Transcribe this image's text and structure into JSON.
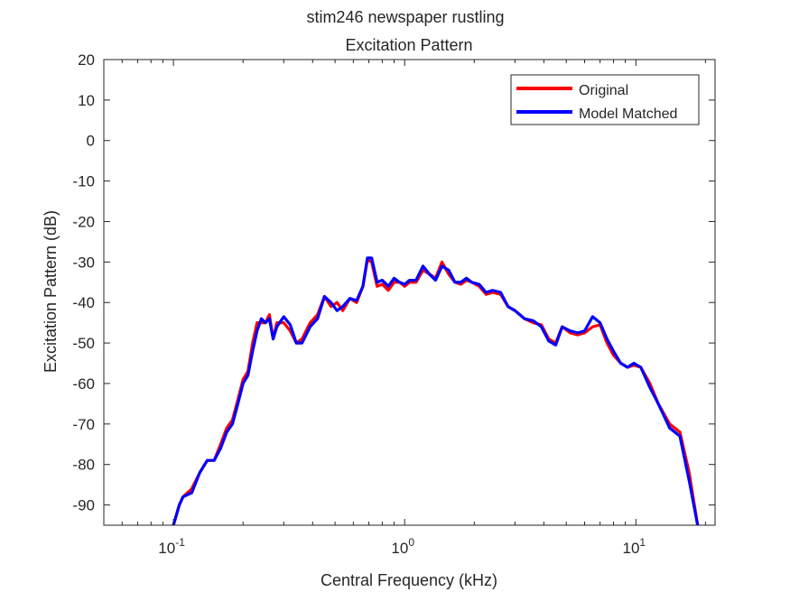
{
  "chart_data": {
    "type": "line",
    "title": "stim246 newspaper rustling",
    "subtitle": "Excitation Pattern",
    "xlabel": "Central Frequency (kHz)",
    "ylabel": "Excitation Pattern (dB)",
    "xscale": "log",
    "xlim": [
      0.05,
      22
    ],
    "ylim": [
      -95,
      20
    ],
    "yticks": [
      20,
      10,
      0,
      -10,
      -20,
      -30,
      -40,
      -50,
      -60,
      -70,
      -80,
      -90
    ],
    "xticks": [
      {
        "value": 0.1,
        "base": "10",
        "exp": "-1"
      },
      {
        "value": 1,
        "base": "10",
        "exp": "0"
      },
      {
        "value": 10,
        "base": "10",
        "exp": "1"
      }
    ],
    "grid": false,
    "legend_position": "top-right",
    "series": [
      {
        "name": "Original",
        "color": "#ff0000",
        "points": [
          [
            0.1,
            -95
          ],
          [
            0.106,
            -90
          ],
          [
            0.11,
            -88
          ],
          [
            0.12,
            -86
          ],
          [
            0.13,
            -82
          ],
          [
            0.14,
            -79
          ],
          [
            0.15,
            -79
          ],
          [
            0.16,
            -75
          ],
          [
            0.17,
            -71
          ],
          [
            0.18,
            -69
          ],
          [
            0.19,
            -64
          ],
          [
            0.2,
            -59
          ],
          [
            0.21,
            -57
          ],
          [
            0.22,
            -50
          ],
          [
            0.23,
            -45
          ],
          [
            0.24,
            -45
          ],
          [
            0.25,
            -45
          ],
          [
            0.26,
            -43
          ],
          [
            0.27,
            -49
          ],
          [
            0.28,
            -45
          ],
          [
            0.3,
            -45
          ],
          [
            0.32,
            -47
          ],
          [
            0.34,
            -50
          ],
          [
            0.36,
            -49
          ],
          [
            0.39,
            -45
          ],
          [
            0.42,
            -43
          ],
          [
            0.45,
            -38.5
          ],
          [
            0.48,
            -41
          ],
          [
            0.51,
            -40
          ],
          [
            0.54,
            -42
          ],
          [
            0.58,
            -39
          ],
          [
            0.62,
            -40
          ],
          [
            0.66,
            -36
          ],
          [
            0.69,
            -29.5
          ],
          [
            0.72,
            -30
          ],
          [
            0.76,
            -36
          ],
          [
            0.8,
            -35.5
          ],
          [
            0.85,
            -37
          ],
          [
            0.9,
            -35
          ],
          [
            0.95,
            -35
          ],
          [
            1.0,
            -36
          ],
          [
            1.05,
            -35
          ],
          [
            1.12,
            -35
          ],
          [
            1.2,
            -32
          ],
          [
            1.28,
            -33
          ],
          [
            1.36,
            -34
          ],
          [
            1.45,
            -30
          ],
          [
            1.55,
            -33
          ],
          [
            1.65,
            -35
          ],
          [
            1.75,
            -35.5
          ],
          [
            1.85,
            -34.5
          ],
          [
            1.95,
            -35
          ],
          [
            2.1,
            -36
          ],
          [
            2.25,
            -38
          ],
          [
            2.4,
            -37.5
          ],
          [
            2.6,
            -38
          ],
          [
            2.8,
            -41
          ],
          [
            3.0,
            -42
          ],
          [
            3.3,
            -44
          ],
          [
            3.6,
            -45
          ],
          [
            3.9,
            -45.5
          ],
          [
            4.2,
            -49
          ],
          [
            4.5,
            -50
          ],
          [
            4.8,
            -46
          ],
          [
            5.2,
            -47.5
          ],
          [
            5.6,
            -48
          ],
          [
            6.0,
            -47.5
          ],
          [
            6.5,
            -46
          ],
          [
            7.0,
            -45.5
          ],
          [
            7.5,
            -50
          ],
          [
            8.0,
            -53
          ],
          [
            8.6,
            -55
          ],
          [
            9.2,
            -56
          ],
          [
            9.8,
            -55.5
          ],
          [
            10.5,
            -56
          ],
          [
            11.5,
            -60
          ],
          [
            12.5,
            -65
          ],
          [
            14,
            -70
          ],
          [
            15.5,
            -72
          ],
          [
            17,
            -82
          ],
          [
            18.5,
            -95
          ]
        ]
      },
      {
        "name": "Model Matched",
        "color": "#0000ff",
        "points": [
          [
            0.1,
            -95
          ],
          [
            0.106,
            -90
          ],
          [
            0.11,
            -88
          ],
          [
            0.12,
            -87
          ],
          [
            0.13,
            -82
          ],
          [
            0.14,
            -79
          ],
          [
            0.15,
            -79
          ],
          [
            0.16,
            -76
          ],
          [
            0.17,
            -72
          ],
          [
            0.18,
            -70
          ],
          [
            0.19,
            -65
          ],
          [
            0.2,
            -60
          ],
          [
            0.21,
            -58
          ],
          [
            0.22,
            -52
          ],
          [
            0.23,
            -47
          ],
          [
            0.24,
            -44
          ],
          [
            0.25,
            -45
          ],
          [
            0.26,
            -44
          ],
          [
            0.27,
            -49
          ],
          [
            0.28,
            -46
          ],
          [
            0.3,
            -43.5
          ],
          [
            0.32,
            -45.5
          ],
          [
            0.34,
            -50
          ],
          [
            0.36,
            -50
          ],
          [
            0.39,
            -46
          ],
          [
            0.42,
            -44
          ],
          [
            0.45,
            -38.5
          ],
          [
            0.48,
            -40
          ],
          [
            0.51,
            -42
          ],
          [
            0.54,
            -41
          ],
          [
            0.58,
            -39
          ],
          [
            0.62,
            -39.5
          ],
          [
            0.66,
            -36
          ],
          [
            0.69,
            -29
          ],
          [
            0.72,
            -29
          ],
          [
            0.76,
            -35
          ],
          [
            0.8,
            -34.5
          ],
          [
            0.85,
            -36
          ],
          [
            0.9,
            -34
          ],
          [
            0.95,
            -35
          ],
          [
            1.0,
            -35.5
          ],
          [
            1.05,
            -34.5
          ],
          [
            1.12,
            -34.5
          ],
          [
            1.2,
            -31
          ],
          [
            1.28,
            -33
          ],
          [
            1.36,
            -34.5
          ],
          [
            1.45,
            -31
          ],
          [
            1.55,
            -32
          ],
          [
            1.65,
            -35
          ],
          [
            1.75,
            -35
          ],
          [
            1.85,
            -34
          ],
          [
            1.95,
            -35
          ],
          [
            2.1,
            -35.5
          ],
          [
            2.25,
            -37.5
          ],
          [
            2.4,
            -37
          ],
          [
            2.6,
            -37.5
          ],
          [
            2.8,
            -41
          ],
          [
            3.0,
            -42
          ],
          [
            3.3,
            -44
          ],
          [
            3.6,
            -44.5
          ],
          [
            3.9,
            -46
          ],
          [
            4.2,
            -49.5
          ],
          [
            4.5,
            -50.5
          ],
          [
            4.8,
            -46
          ],
          [
            5.2,
            -47
          ],
          [
            5.6,
            -47.5
          ],
          [
            6.0,
            -47
          ],
          [
            6.5,
            -43.5
          ],
          [
            7.0,
            -45
          ],
          [
            7.5,
            -49
          ],
          [
            8.0,
            -52
          ],
          [
            8.6,
            -55
          ],
          [
            9.2,
            -56
          ],
          [
            9.8,
            -55
          ],
          [
            10.5,
            -56
          ],
          [
            11.5,
            -61
          ],
          [
            12.5,
            -65
          ],
          [
            14,
            -71
          ],
          [
            15.5,
            -73
          ],
          [
            17,
            -84
          ],
          [
            18.5,
            -95
          ]
        ]
      }
    ]
  }
}
